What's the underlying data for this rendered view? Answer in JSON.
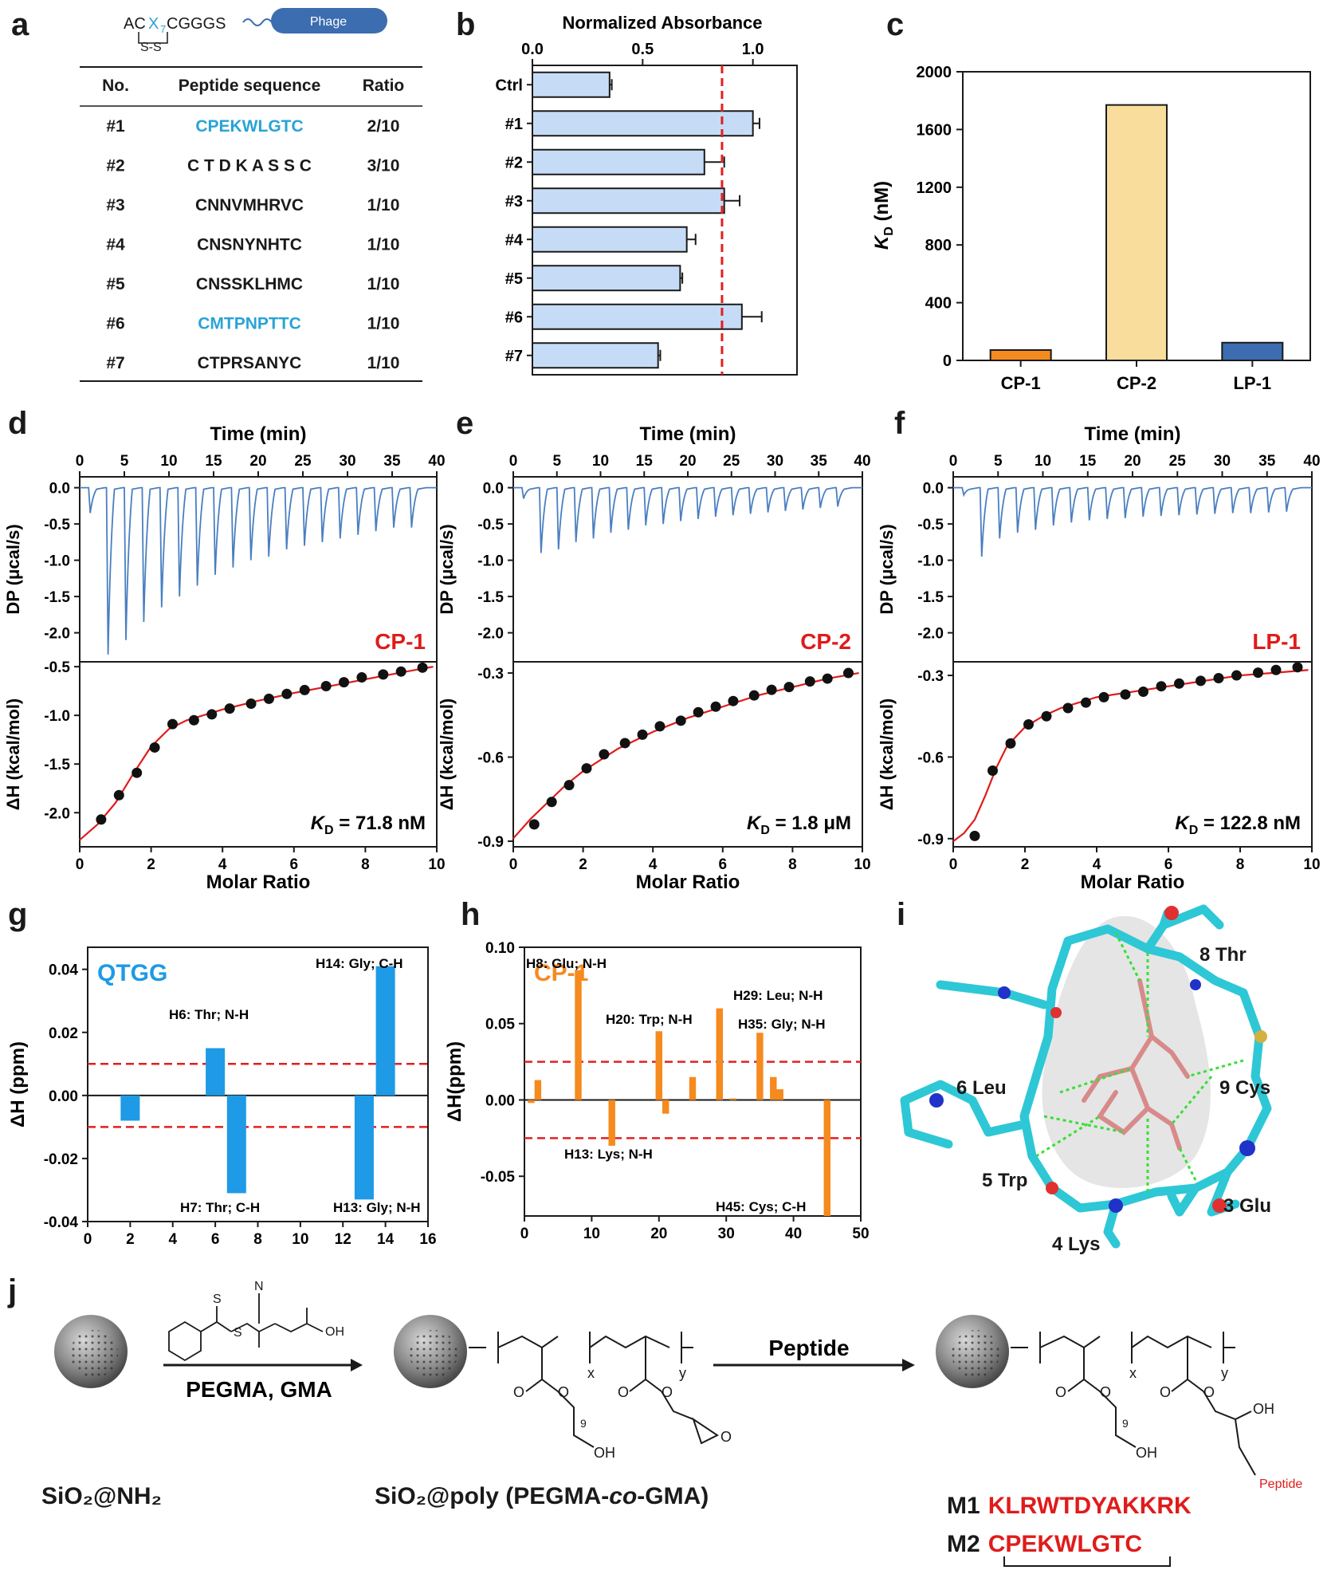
{
  "panel_letters": [
    "a",
    "b",
    "c",
    "d",
    "e",
    "f",
    "g",
    "h",
    "i",
    "j"
  ],
  "panel_a": {
    "construct_prefix": "AC",
    "construct_x": "X",
    "construct_sub": "7",
    "construct_suffix": "CGGGS",
    "disulfide": "S-S",
    "phage_label": "Phage",
    "headers": [
      "No.",
      "Peptide sequence",
      "Ratio"
    ],
    "rows": [
      {
        "no": "#1",
        "seq": "CPEKWLGTC",
        "ratio": "2/10",
        "hl": true
      },
      {
        "no": "#2",
        "seq": "C T D K A S S C",
        "ratio": "3/10",
        "hl": false
      },
      {
        "no": "#3",
        "seq": "CNNVMHRVC",
        "ratio": "1/10",
        "hl": false
      },
      {
        "no": "#4",
        "seq": "CNSNYNHTC",
        "ratio": "1/10",
        "hl": false
      },
      {
        "no": "#5",
        "seq": "CNSSKLHMC",
        "ratio": "1/10",
        "hl": false
      },
      {
        "no": "#6",
        "seq": "CMTPNPTTC",
        "ratio": "1/10",
        "hl": true
      },
      {
        "no": "#7",
        "seq": "CTPRSANYC",
        "ratio": "1/10",
        "hl": false
      }
    ],
    "colors": {
      "highlight": "#29a3d6",
      "text": "#1a1a1a"
    }
  },
  "chart_data": [
    {
      "panel": "b",
      "type": "bar",
      "orientation": "horizontal",
      "title": "Normalized Absorbance",
      "categories": [
        "Ctrl",
        "#1",
        "#2",
        "#3",
        "#4",
        "#5",
        "#6",
        "#7"
      ],
      "values": [
        0.35,
        1.0,
        0.78,
        0.87,
        0.7,
        0.67,
        0.95,
        0.57
      ],
      "errors": [
        0.01,
        0.03,
        0.09,
        0.07,
        0.04,
        0.01,
        0.09,
        0.01
      ],
      "xlim": [
        0,
        1.2
      ],
      "xticks": [
        0.0,
        0.5,
        1.0
      ],
      "xtick_labels": [
        "0.0",
        "0.5",
        "1.0"
      ],
      "threshold": 0.86,
      "bar_color": "#c6dcf6",
      "threshold_color": "#e02020"
    },
    {
      "panel": "c",
      "type": "bar",
      "categories": [
        "CP-1",
        "CP-2",
        "LP-1"
      ],
      "values": [
        72,
        1770,
        123
      ],
      "colors": [
        "#f58a1f",
        "#f9dd9c",
        "#3b6db0"
      ],
      "ylim": [
        0,
        2000
      ],
      "yticks": [
        0,
        400,
        800,
        1200,
        1600,
        2000
      ],
      "ylabel_main": "K",
      "ylabel_sub": "D",
      "ylabel_rest": " (nM)"
    },
    {
      "panel": "d",
      "type": "itc",
      "label": "CP-1",
      "label_color": "#e01b1b",
      "top_xlabel": "Time (min)",
      "xlabel": "Molar Ratio",
      "ylabel_top": "DP (μcal/s)",
      "ylabel_bottom": "ΔH (kcal/mol)",
      "time_ticks": [
        0,
        5,
        10,
        15,
        20,
        25,
        30,
        35,
        40
      ],
      "dp_ylim": [
        -2.4,
        0.15
      ],
      "dp_ticks": [
        "0.0",
        "-0.5",
        "-1.0",
        "-1.5",
        "-2.0"
      ],
      "dp_tick_vals": [
        0,
        -0.5,
        -1.0,
        -1.5,
        -2.0
      ],
      "injection_times": [
        1,
        3,
        5,
        7,
        9,
        11,
        13,
        15,
        17,
        19,
        21,
        23,
        25,
        27,
        29,
        31,
        33,
        35,
        37
      ],
      "peak_depths": [
        0.35,
        2.3,
        2.1,
        1.85,
        1.65,
        1.5,
        1.35,
        1.2,
        1.1,
        1.0,
        0.95,
        0.85,
        0.8,
        0.75,
        0.7,
        0.65,
        0.6,
        0.55,
        0.55
      ],
      "dh_ylim": [
        -2.35,
        -0.45
      ],
      "dh_ticks": [
        "-2.0",
        "-1.5",
        "-1.0",
        "-0.5"
      ],
      "dh_tick_vals": [
        -2.0,
        -1.5,
        -1.0,
        -0.5
      ],
      "mr_ticks": [
        0,
        2,
        4,
        6,
        8,
        10
      ],
      "points_x": [
        0.6,
        1.1,
        1.6,
        2.1,
        2.6,
        3.2,
        3.7,
        4.2,
        4.8,
        5.3,
        5.8,
        6.3,
        6.9,
        7.4,
        7.9,
        8.5,
        9.0,
        9.6
      ],
      "points_y": [
        -2.07,
        -1.82,
        -1.59,
        -1.33,
        -1.09,
        -1.05,
        -0.99,
        -0.93,
        -0.88,
        -0.83,
        -0.78,
        -0.74,
        -0.7,
        -0.66,
        -0.61,
        -0.58,
        -0.55,
        -0.51
      ],
      "fit_x": [
        0,
        0.5,
        1.0,
        1.5,
        2.0,
        2.5,
        3.0,
        4.0,
        5.0,
        6.0,
        7.0,
        8.0,
        9.0,
        9.9
      ],
      "fit_y": [
        -2.28,
        -2.12,
        -1.9,
        -1.6,
        -1.32,
        -1.14,
        -1.05,
        -0.94,
        -0.85,
        -0.77,
        -0.7,
        -0.63,
        -0.56,
        -0.5
      ],
      "kd_text": " = 71.8 nM"
    },
    {
      "panel": "e",
      "type": "itc",
      "label": "CP-2",
      "label_color": "#e01b1b",
      "top_xlabel": "Time (min)",
      "xlabel": "Molar Ratio",
      "ylabel_top": "DP (μcal/s)",
      "ylabel_bottom": "ΔH (kcal/mol)",
      "time_ticks": [
        0,
        5,
        10,
        15,
        20,
        25,
        30,
        35,
        40
      ],
      "dp_ylim": [
        -2.4,
        0.15
      ],
      "dp_ticks": [
        "0.0",
        "-0.5",
        "-1.0",
        "-1.5",
        "-2.0"
      ],
      "dp_tick_vals": [
        0,
        -0.5,
        -1.0,
        -1.5,
        -2.0
      ],
      "injection_times": [
        1,
        3,
        5,
        7,
        9,
        11,
        13,
        15,
        17,
        19,
        21,
        23,
        25,
        27,
        29,
        31,
        33,
        35,
        37
      ],
      "peak_depths": [
        0.15,
        0.9,
        0.85,
        0.75,
        0.7,
        0.62,
        0.58,
        0.52,
        0.5,
        0.46,
        0.43,
        0.4,
        0.38,
        0.36,
        0.34,
        0.32,
        0.3,
        0.28,
        0.26
      ],
      "dh_ylim": [
        -0.92,
        -0.26
      ],
      "dh_ticks": [
        "-0.9",
        "-0.6",
        "-0.3"
      ],
      "dh_tick_vals": [
        -0.9,
        -0.6,
        -0.3
      ],
      "mr_ticks": [
        0,
        2,
        4,
        6,
        8,
        10
      ],
      "points_x": [
        0.6,
        1.1,
        1.6,
        2.1,
        2.6,
        3.2,
        3.7,
        4.2,
        4.8,
        5.3,
        5.8,
        6.3,
        6.9,
        7.4,
        7.9,
        8.5,
        9.0,
        9.6
      ],
      "points_y": [
        -0.84,
        -0.76,
        -0.7,
        -0.64,
        -0.59,
        -0.55,
        -0.52,
        -0.49,
        -0.47,
        -0.44,
        -0.42,
        -0.4,
        -0.38,
        -0.36,
        -0.35,
        -0.33,
        -0.32,
        -0.3
      ],
      "fit_x": [
        0,
        0.5,
        1.0,
        1.5,
        2.0,
        3.0,
        4.0,
        5.0,
        6.0,
        7.0,
        8.0,
        9.0,
        9.9
      ],
      "fit_y": [
        -0.89,
        -0.82,
        -0.76,
        -0.7,
        -0.65,
        -0.57,
        -0.51,
        -0.46,
        -0.42,
        -0.38,
        -0.35,
        -0.32,
        -0.3
      ],
      "kd_text": " = 1.8 μM"
    },
    {
      "panel": "f",
      "type": "itc",
      "label": "LP-1",
      "label_color": "#e01b1b",
      "top_xlabel": "Time (min)",
      "xlabel": "Molar Ratio",
      "ylabel_top": "DP (μcal/s)",
      "ylabel_bottom": "ΔH (kcal/mol)",
      "time_ticks": [
        0,
        5,
        10,
        15,
        20,
        25,
        30,
        35,
        40
      ],
      "dp_ylim": [
        -2.4,
        0.15
      ],
      "dp_ticks": [
        "0.0",
        "-0.5",
        "-1.0",
        "-1.5",
        "-2.0"
      ],
      "dp_tick_vals": [
        0,
        -0.5,
        -1.0,
        -1.5,
        -2.0
      ],
      "injection_times": [
        1,
        3,
        5,
        7,
        9,
        11,
        13,
        15,
        17,
        19,
        21,
        23,
        25,
        27,
        29,
        31,
        33,
        35,
        37
      ],
      "peak_depths": [
        0.1,
        0.95,
        0.7,
        0.62,
        0.58,
        0.52,
        0.48,
        0.45,
        0.43,
        0.42,
        0.4,
        0.39,
        0.38,
        0.37,
        0.36,
        0.35,
        0.35,
        0.34,
        0.33
      ],
      "dh_ylim": [
        -0.93,
        -0.25
      ],
      "dh_ticks": [
        "-0.9",
        "-0.6",
        "-0.3"
      ],
      "dh_tick_vals": [
        -0.9,
        -0.6,
        -0.3
      ],
      "mr_ticks": [
        0,
        2,
        4,
        6,
        8,
        10
      ],
      "points_x": [
        0.6,
        1.1,
        1.6,
        2.1,
        2.6,
        3.2,
        3.7,
        4.2,
        4.8,
        5.3,
        5.8,
        6.3,
        6.9,
        7.4,
        7.9,
        8.5,
        9.0,
        9.6
      ],
      "points_y": [
        -0.89,
        -0.65,
        -0.55,
        -0.48,
        -0.45,
        -0.42,
        -0.4,
        -0.38,
        -0.37,
        -0.36,
        -0.34,
        -0.33,
        -0.32,
        -0.31,
        -0.3,
        -0.29,
        -0.28,
        -0.27
      ],
      "fit_x": [
        0,
        0.3,
        0.6,
        0.9,
        1.2,
        1.5,
        2.0,
        2.5,
        3.0,
        4.0,
        5.0,
        6.0,
        7.0,
        8.0,
        9.0,
        9.9
      ],
      "fit_y": [
        -0.91,
        -0.88,
        -0.83,
        -0.74,
        -0.64,
        -0.56,
        -0.49,
        -0.45,
        -0.42,
        -0.38,
        -0.36,
        -0.34,
        -0.32,
        -0.3,
        -0.29,
        -0.28
      ],
      "kd_text": " = 122.8 nM"
    },
    {
      "panel": "g",
      "type": "bar",
      "label": "QTGG",
      "label_color": "#1e9ae6",
      "bar_color": "#1e9ae6",
      "ylabel": "ΔH (ppm)",
      "x": [
        2,
        6,
        7,
        13,
        14
      ],
      "values": [
        -0.008,
        0.015,
        -0.031,
        -0.033,
        0.041
      ],
      "bar_width": 0.9,
      "xlim": [
        0,
        16
      ],
      "xticks": [
        0,
        2,
        4,
        6,
        8,
        10,
        12,
        14,
        16
      ],
      "ylim": [
        -0.04,
        0.047
      ],
      "yticks": [
        -0.04,
        -0.02,
        0.0,
        0.02,
        0.04
      ],
      "ytick_labels": [
        "-0.04",
        "-0.02",
        "0.00",
        "0.02",
        "0.04"
      ],
      "thresholds": [
        0.01,
        -0.01
      ],
      "annotations": [
        "H6: Thr; N-H",
        "H7: Thr; C-H",
        "H13: Gly; N-H",
        "H14: Gly; C-H"
      ]
    },
    {
      "panel": "h",
      "type": "bar",
      "label": "CP-1",
      "label_color": "#f58a1f",
      "bar_color": "#f58a1f",
      "ylabel": "ΔH(ppm)",
      "x": [
        1,
        2,
        8,
        13,
        20,
        21,
        25,
        29,
        31,
        35,
        37,
        38,
        45
      ],
      "values": [
        -0.002,
        0.013,
        0.085,
        -0.03,
        0.045,
        -0.009,
        0.015,
        0.06,
        0.001,
        0.044,
        0.015,
        0.007,
        -0.076
      ],
      "bar_width": 1.0,
      "xlim": [
        0,
        50
      ],
      "xticks": [
        0,
        10,
        20,
        30,
        40,
        50
      ],
      "ylim": [
        -0.076,
        0.1
      ],
      "yticks": [
        -0.05,
        0.0,
        0.05,
        0.1
      ],
      "ytick_labels": [
        "-0.05",
        "0.00",
        "0.05",
        "0.10"
      ],
      "thresholds": [
        0.025,
        -0.025
      ],
      "annotations": [
        "H8: Glu; N-H",
        "H20: Trp; N-H",
        "H29: Leu; N-H",
        "H35: Gly; N-H",
        "H13: Lys; N-H",
        "H45: Cys; C-H"
      ]
    }
  ],
  "panel_i": {
    "residues": [
      "8 Thr",
      "6 Leu",
      "9 Cys",
      "5 Trp",
      "3 Glu",
      "4 Lys"
    ]
  },
  "panel_j": {
    "step1_reagents": "PEGMA, GMA",
    "raft_s": "S",
    "raft_n": "N",
    "raft_oh": "OH",
    "step2_label": "Peptide",
    "start_label": "SiO₂@NH₂",
    "mid_label_a": "SiO₂@poly (PEGMA-",
    "mid_label_co": "co",
    "mid_label_b": "-GMA)",
    "sub_x": "x",
    "sub_y": "y",
    "sub_9": "9",
    "oh": "OH",
    "o": "O",
    "peptide_tag": "Peptide",
    "m1_id": "M1",
    "m1_seq": "KLRWTDYAKKRK",
    "m2_id": "M2",
    "m2_seq": "CPEKWLGTC",
    "seq_color": "#e01b1b"
  }
}
